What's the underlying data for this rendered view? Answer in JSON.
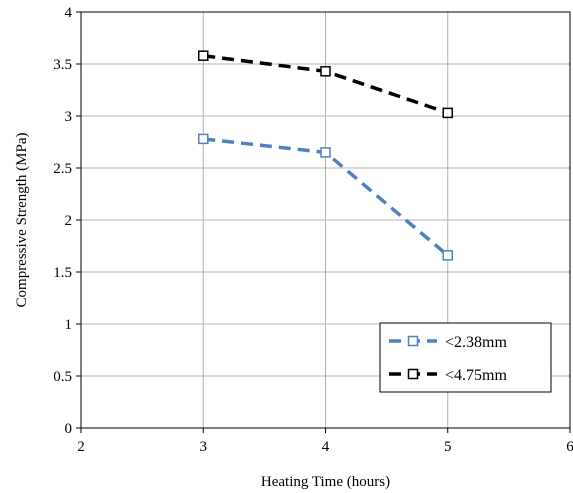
{
  "chart_data": {
    "type": "line",
    "xlabel": "Heating Time (hours)",
    "ylabel": "Compressive Strength (MPa)",
    "xlim": [
      2,
      6
    ],
    "ylim": [
      0,
      4
    ],
    "xticks": [
      2,
      3,
      4,
      5,
      6
    ],
    "yticks": [
      0,
      0.5,
      1,
      1.5,
      2,
      2.5,
      3,
      3.5,
      4
    ],
    "xtick_labels": [
      "2",
      "3",
      "4",
      "5",
      "6"
    ],
    "ytick_labels": [
      "0",
      "0.5",
      "1",
      "1.5",
      "2",
      "2.5",
      "3",
      "3.5",
      "4"
    ],
    "grid": true,
    "legend_position": "bottom-right",
    "series": [
      {
        "name": "<2.38mm",
        "color": "#4F81BD",
        "marker": "open-square",
        "line": "dashed",
        "x": [
          3,
          4,
          5
        ],
        "y": [
          2.78,
          2.65,
          1.66
        ]
      },
      {
        "name": "<4.75mm",
        "color": "#000000",
        "marker": "open-square",
        "line": "dashed",
        "x": [
          3,
          4,
          5
        ],
        "y": [
          3.58,
          3.43,
          3.03
        ]
      }
    ]
  }
}
